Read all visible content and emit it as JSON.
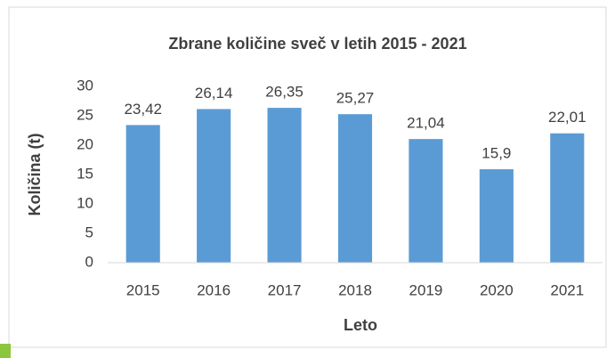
{
  "chart_data": {
    "type": "bar",
    "title": "Zbrane količine sveč v letih 2015 - 2021",
    "x_label": "Leto",
    "y_label": "Količina (t)",
    "categories": [
      "2015",
      "2016",
      "2017",
      "2018",
      "2019",
      "2020",
      "2021"
    ],
    "values": [
      23.42,
      26.14,
      26.35,
      25.27,
      21.04,
      15.9,
      22.01
    ],
    "value_labels": [
      "23,42",
      "26,14",
      "26,35",
      "25,27",
      "21,04",
      "15,9",
      "22,01"
    ],
    "color": "#5b9bd5",
    "ylim": [
      0,
      30
    ],
    "yticks": [
      0,
      5,
      10,
      15,
      20,
      25,
      30
    ],
    "grid": false
  }
}
